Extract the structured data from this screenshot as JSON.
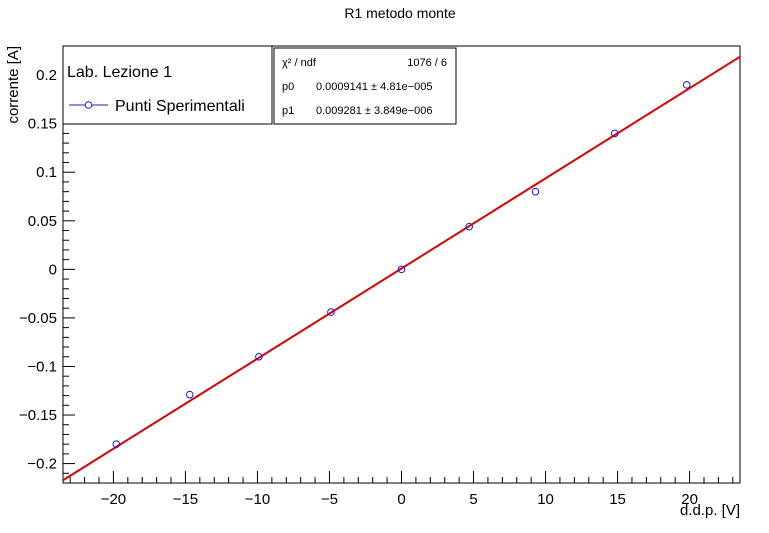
{
  "chart_data": {
    "type": "scatter",
    "title": "R1 metodo monte",
    "xlabel": "d.d.p. [V]",
    "ylabel": "corrente [A]",
    "xlim": [
      -23.5,
      23.5
    ],
    "ylim": [
      -0.22,
      0.23
    ],
    "x_ticks": [
      -20,
      -15,
      -10,
      -5,
      0,
      5,
      10,
      15,
      20
    ],
    "x_tick_labels": [
      "−20",
      "−15",
      "−10",
      "−5",
      "0",
      "5",
      "10",
      "15",
      "20"
    ],
    "y_ticks": [
      -0.2,
      -0.15,
      -0.1,
      -0.05,
      0,
      0.05,
      0.1,
      0.15,
      0.2
    ],
    "y_tick_labels": [
      "−0.2",
      "−0.15",
      "−0.1",
      "−0.05",
      "0",
      "0.05",
      "0.1",
      "0.15",
      "0.2"
    ],
    "grid": false,
    "legend_placement": "top-left",
    "legend": {
      "header": "Lab. Lezione 1",
      "entries": [
        {
          "label": "Punti Sperimentali",
          "color": "#1c1cc8"
        }
      ]
    },
    "series": [
      {
        "name": "Punti Sperimentali",
        "color": "#1c1cc8",
        "marker": "open-circle",
        "x": [
          -19.8,
          -14.7,
          -9.9,
          -4.9,
          0.0,
          4.7,
          9.3,
          14.8,
          19.8
        ],
        "y": [
          -0.18,
          -0.129,
          -0.09,
          -0.044,
          0.0,
          0.044,
          0.08,
          0.14,
          0.19
        ]
      }
    ],
    "fit": {
      "color": "#dd0000",
      "p0": 0.0009141,
      "p1": 0.009281,
      "x_range": [
        -23.5,
        23.5
      ]
    },
    "stats_box": {
      "rows": [
        {
          "label": "χ² / ndf",
          "value": "1076 / 6"
        },
        {
          "label": "p0",
          "value": "0.0009141 ± 4.81e−005"
        },
        {
          "label": "p1",
          "value": "0.009281 ± 3.849e−006"
        }
      ]
    }
  }
}
